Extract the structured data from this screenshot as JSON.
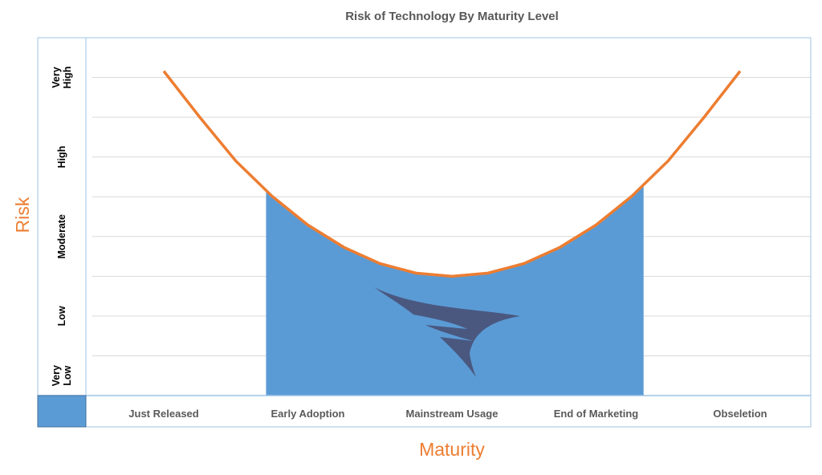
{
  "chart_data": {
    "type": "area",
    "title": "Risk of Technology By Maturity Level",
    "xlabel": "Maturity",
    "ylabel": "Risk",
    "categories": [
      "Just Released",
      "Early Adoption",
      "Mainstream Usage",
      "End of Marketing",
      "Obseletion"
    ],
    "y_levels": [
      {
        "label": [
          "Very",
          "Low"
        ],
        "range": [
          0,
          1
        ]
      },
      {
        "label": [
          "Low"
        ],
        "range": [
          1,
          3
        ]
      },
      {
        "label": [
          "Moderate"
        ],
        "range": [
          3,
          5
        ]
      },
      {
        "label": [
          "High"
        ],
        "range": [
          5,
          7
        ]
      },
      {
        "label": [
          "Very",
          "High"
        ],
        "range": [
          7,
          9
        ]
      }
    ],
    "ylim": [
      0,
      9
    ],
    "grid": true,
    "curve": {
      "x": [
        0,
        0.25,
        0.5,
        0.75,
        1,
        1.25,
        1.5,
        1.75,
        2,
        2.25,
        2.5,
        2.75,
        3,
        3.25,
        3.5,
        3.75,
        4
      ],
      "y": [
        8.16,
        7.0,
        5.9,
        5.02,
        4.29,
        3.73,
        3.32,
        3.08,
        3.0,
        3.08,
        3.32,
        3.73,
        4.29,
        5.02,
        5.9,
        7.0,
        8.16
      ]
    },
    "shaded_range": [
      0.71,
      3.33
    ],
    "colors": {
      "curve": "#ED7D31",
      "fill": "#5B9BD5",
      "logo": "#4A5880",
      "axis_border": "#9DC3E6",
      "grid": "#D9D9D9"
    }
  }
}
